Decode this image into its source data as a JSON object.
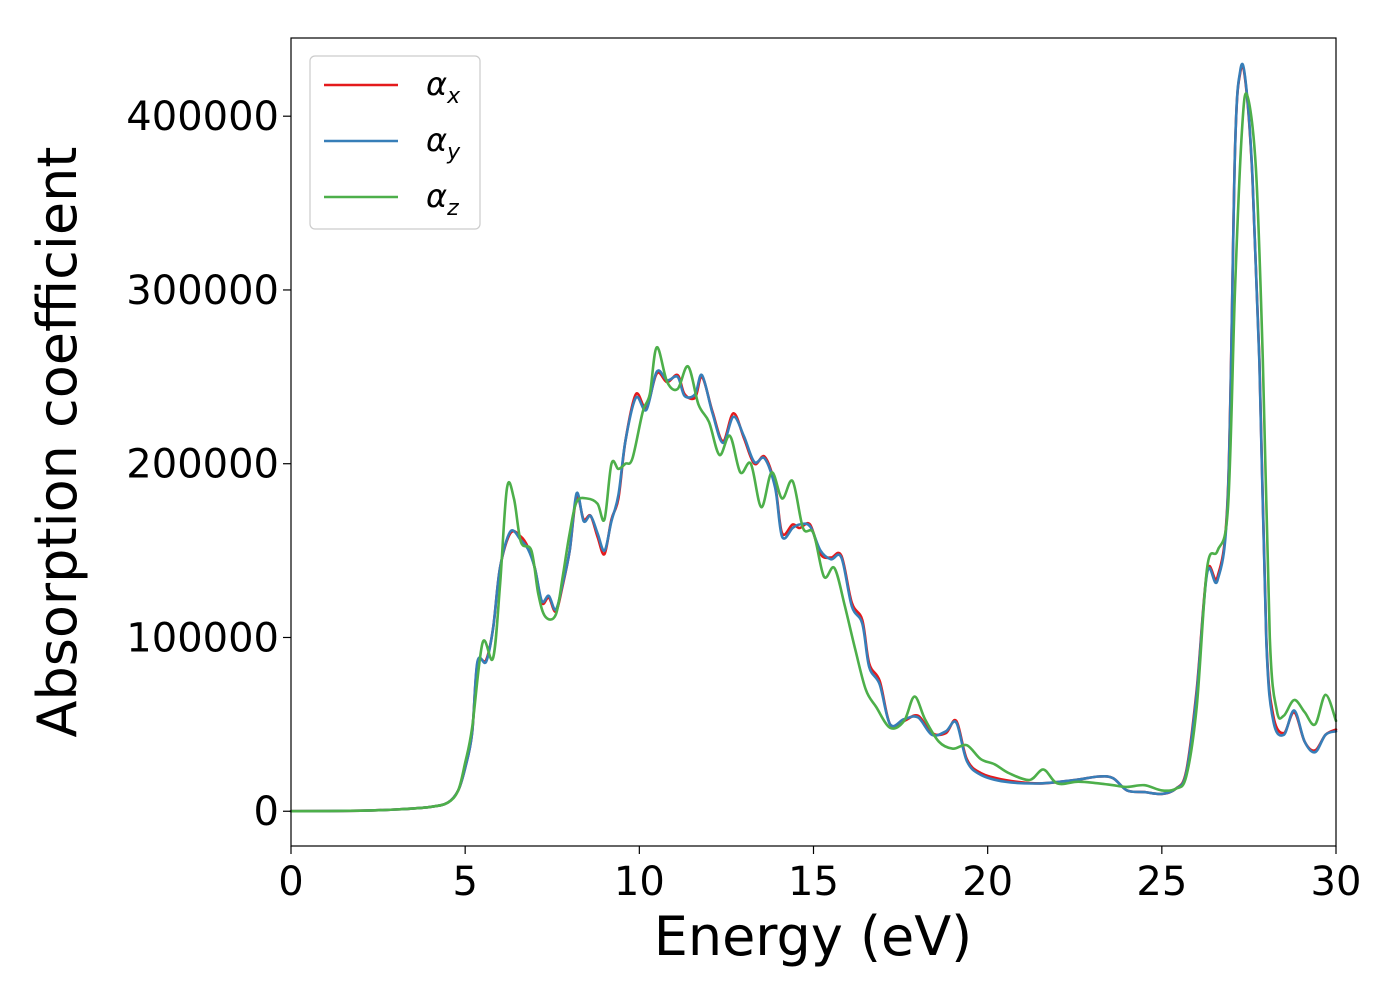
{
  "chart_data": {
    "type": "line",
    "title": "",
    "xlabel": "Energy (eV)",
    "ylabel": "Absorption coefficient",
    "xlim": [
      0,
      30
    ],
    "ylim": [
      -20000,
      445000
    ],
    "xticks": [
      0,
      5,
      10,
      15,
      20,
      25,
      30
    ],
    "yticks": [
      0,
      100000,
      200000,
      300000,
      400000
    ],
    "xtick_labels": [
      "0",
      "5",
      "10",
      "15",
      "20",
      "25",
      "30"
    ],
    "ytick_labels": [
      "0",
      "100000",
      "200000",
      "300000",
      "400000"
    ],
    "grid": false,
    "legend_position": "top-left",
    "series": [
      {
        "name": "αx",
        "symbol": "α",
        "subscript": "x",
        "color": "#e41a1c",
        "points": [
          [
            0,
            0
          ],
          [
            2,
            300
          ],
          [
            3,
            1000
          ],
          [
            4,
            2500
          ],
          [
            4.5,
            5000
          ],
          [
            4.8,
            12000
          ],
          [
            5,
            25000
          ],
          [
            5.2,
            45000
          ],
          [
            5.35,
            85000
          ],
          [
            5.6,
            87000
          ],
          [
            5.8,
            105000
          ],
          [
            6.0,
            140000
          ],
          [
            6.3,
            160000
          ],
          [
            6.6,
            158000
          ],
          [
            6.8,
            152000
          ],
          [
            7.0,
            140000
          ],
          [
            7.2,
            120000
          ],
          [
            7.4,
            123000
          ],
          [
            7.6,
            115000
          ],
          [
            7.8,
            130000
          ],
          [
            8.0,
            150000
          ],
          [
            8.2,
            181000
          ],
          [
            8.4,
            168000
          ],
          [
            8.6,
            170000
          ],
          [
            8.8,
            158000
          ],
          [
            9.0,
            148000
          ],
          [
            9.2,
            168000
          ],
          [
            9.4,
            180000
          ],
          [
            9.6,
            213000
          ],
          [
            9.9,
            240000
          ],
          [
            10.2,
            232000
          ],
          [
            10.5,
            252000
          ],
          [
            10.8,
            247000
          ],
          [
            11.1,
            251000
          ],
          [
            11.3,
            240000
          ],
          [
            11.6,
            238000
          ],
          [
            11.8,
            250000
          ],
          [
            12.1,
            230000
          ],
          [
            12.4,
            213000
          ],
          [
            12.7,
            229000
          ],
          [
            13.0,
            215000
          ],
          [
            13.3,
            200000
          ],
          [
            13.6,
            204000
          ],
          [
            13.9,
            187000
          ],
          [
            14.1,
            160000
          ],
          [
            14.4,
            165000
          ],
          [
            14.6,
            163000
          ],
          [
            14.9,
            165000
          ],
          [
            15.2,
            148000
          ],
          [
            15.5,
            146000
          ],
          [
            15.8,
            147000
          ],
          [
            16.1,
            120000
          ],
          [
            16.4,
            110000
          ],
          [
            16.6,
            85000
          ],
          [
            16.9,
            75000
          ],
          [
            17.2,
            50000
          ],
          [
            17.6,
            52000
          ],
          [
            18.0,
            55000
          ],
          [
            18.4,
            45000
          ],
          [
            18.8,
            45000
          ],
          [
            19.1,
            52000
          ],
          [
            19.4,
            30000
          ],
          [
            19.8,
            22000
          ],
          [
            20.5,
            18000
          ],
          [
            21.5,
            16000
          ],
          [
            22.5,
            18000
          ],
          [
            23.2,
            20000
          ],
          [
            23.6,
            19000
          ],
          [
            24.0,
            12000
          ],
          [
            24.5,
            11000
          ],
          [
            25.0,
            10000
          ],
          [
            25.4,
            13000
          ],
          [
            25.7,
            23000
          ],
          [
            26.0,
            70000
          ],
          [
            26.3,
            138000
          ],
          [
            26.6,
            135000
          ],
          [
            26.9,
            185000
          ],
          [
            27.1,
            380000
          ],
          [
            27.25,
            425000
          ],
          [
            27.4,
            420000
          ],
          [
            27.6,
            365000
          ],
          [
            27.8,
            260000
          ],
          [
            28.0,
            100000
          ],
          [
            28.2,
            55000
          ],
          [
            28.5,
            45000
          ],
          [
            28.8,
            57000
          ],
          [
            29.1,
            40000
          ],
          [
            29.4,
            35000
          ],
          [
            29.7,
            44000
          ],
          [
            30,
            47000
          ]
        ]
      },
      {
        "name": "αy",
        "symbol": "α",
        "subscript": "y",
        "color": "#377eb8",
        "points": [
          [
            0,
            0
          ],
          [
            2,
            300
          ],
          [
            3,
            1000
          ],
          [
            4,
            2500
          ],
          [
            4.5,
            5000
          ],
          [
            4.8,
            12000
          ],
          [
            5,
            25000
          ],
          [
            5.2,
            45000
          ],
          [
            5.35,
            86000
          ],
          [
            5.6,
            86000
          ],
          [
            5.8,
            105000
          ],
          [
            6.0,
            140000
          ],
          [
            6.3,
            161000
          ],
          [
            6.6,
            156000
          ],
          [
            6.8,
            151000
          ],
          [
            7.0,
            140000
          ],
          [
            7.2,
            121000
          ],
          [
            7.4,
            124000
          ],
          [
            7.6,
            116000
          ],
          [
            7.8,
            131000
          ],
          [
            8.0,
            150000
          ],
          [
            8.2,
            183000
          ],
          [
            8.4,
            167000
          ],
          [
            8.6,
            170000
          ],
          [
            8.8,
            160000
          ],
          [
            9.0,
            150000
          ],
          [
            9.2,
            167000
          ],
          [
            9.4,
            182000
          ],
          [
            9.6,
            213000
          ],
          [
            9.9,
            238000
          ],
          [
            10.2,
            231000
          ],
          [
            10.5,
            253000
          ],
          [
            10.8,
            248000
          ],
          [
            11.1,
            250000
          ],
          [
            11.3,
            239000
          ],
          [
            11.6,
            240000
          ],
          [
            11.8,
            251000
          ],
          [
            12.1,
            229000
          ],
          [
            12.4,
            212000
          ],
          [
            12.7,
            227000
          ],
          [
            13.0,
            216000
          ],
          [
            13.3,
            201000
          ],
          [
            13.6,
            203000
          ],
          [
            13.9,
            186000
          ],
          [
            14.1,
            158000
          ],
          [
            14.4,
            163000
          ],
          [
            14.6,
            165000
          ],
          [
            14.9,
            164000
          ],
          [
            15.2,
            150000
          ],
          [
            15.5,
            145000
          ],
          [
            15.8,
            146000
          ],
          [
            16.1,
            118000
          ],
          [
            16.4,
            108000
          ],
          [
            16.6,
            83000
          ],
          [
            16.9,
            73000
          ],
          [
            17.2,
            50000
          ],
          [
            17.6,
            53000
          ],
          [
            18.0,
            54000
          ],
          [
            18.4,
            44000
          ],
          [
            18.8,
            46000
          ],
          [
            19.1,
            51000
          ],
          [
            19.4,
            29000
          ],
          [
            19.8,
            21000
          ],
          [
            20.5,
            17000
          ],
          [
            21.5,
            16000
          ],
          [
            22.5,
            18000
          ],
          [
            23.2,
            20000
          ],
          [
            23.6,
            19000
          ],
          [
            24.0,
            12000
          ],
          [
            24.5,
            11000
          ],
          [
            25.0,
            10000
          ],
          [
            25.4,
            13000
          ],
          [
            25.7,
            22000
          ],
          [
            26.0,
            68000
          ],
          [
            26.3,
            137000
          ],
          [
            26.6,
            133000
          ],
          [
            26.9,
            183000
          ],
          [
            27.1,
            380000
          ],
          [
            27.25,
            426000
          ],
          [
            27.4,
            421000
          ],
          [
            27.6,
            366000
          ],
          [
            27.8,
            258000
          ],
          [
            28.0,
            98000
          ],
          [
            28.2,
            52000
          ],
          [
            28.5,
            44000
          ],
          [
            28.8,
            58000
          ],
          [
            29.1,
            40000
          ],
          [
            29.4,
            34000
          ],
          [
            29.7,
            44000
          ],
          [
            30,
            46000
          ]
        ]
      },
      {
        "name": "αz",
        "symbol": "α",
        "subscript": "z",
        "color": "#4daf4a",
        "points": [
          [
            0,
            0
          ],
          [
            2,
            300
          ],
          [
            3,
            1000
          ],
          [
            4,
            2500
          ],
          [
            4.5,
            5000
          ],
          [
            4.8,
            12000
          ],
          [
            5,
            28000
          ],
          [
            5.2,
            48000
          ],
          [
            5.5,
            97000
          ],
          [
            5.8,
            88000
          ],
          [
            6.0,
            130000
          ],
          [
            6.2,
            186000
          ],
          [
            6.4,
            180000
          ],
          [
            6.6,
            155000
          ],
          [
            6.9,
            150000
          ],
          [
            7.1,
            125000
          ],
          [
            7.3,
            112000
          ],
          [
            7.6,
            113000
          ],
          [
            7.8,
            135000
          ],
          [
            8.0,
            160000
          ],
          [
            8.2,
            178000
          ],
          [
            8.5,
            180000
          ],
          [
            8.8,
            177000
          ],
          [
            9.0,
            168000
          ],
          [
            9.2,
            200000
          ],
          [
            9.4,
            197000
          ],
          [
            9.6,
            200000
          ],
          [
            9.8,
            203000
          ],
          [
            10.1,
            230000
          ],
          [
            10.3,
            240000
          ],
          [
            10.5,
            267000
          ],
          [
            10.8,
            247000
          ],
          [
            11.1,
            243000
          ],
          [
            11.4,
            256000
          ],
          [
            11.7,
            234000
          ],
          [
            12.0,
            224000
          ],
          [
            12.3,
            205000
          ],
          [
            12.6,
            216000
          ],
          [
            12.9,
            195000
          ],
          [
            13.2,
            200000
          ],
          [
            13.5,
            175000
          ],
          [
            13.8,
            195000
          ],
          [
            14.1,
            180000
          ],
          [
            14.4,
            190000
          ],
          [
            14.7,
            163000
          ],
          [
            15.0,
            160000
          ],
          [
            15.3,
            135000
          ],
          [
            15.6,
            140000
          ],
          [
            15.9,
            118000
          ],
          [
            16.2,
            93000
          ],
          [
            16.5,
            70000
          ],
          [
            16.8,
            60000
          ],
          [
            17.2,
            48000
          ],
          [
            17.6,
            52000
          ],
          [
            17.9,
            66000
          ],
          [
            18.2,
            53000
          ],
          [
            18.6,
            40000
          ],
          [
            19.0,
            36000
          ],
          [
            19.4,
            38000
          ],
          [
            19.8,
            30000
          ],
          [
            20.2,
            27000
          ],
          [
            20.6,
            22000
          ],
          [
            21.2,
            18000
          ],
          [
            21.6,
            24000
          ],
          [
            22.0,
            16000
          ],
          [
            22.6,
            17000
          ],
          [
            23.2,
            16000
          ],
          [
            23.6,
            15000
          ],
          [
            24.0,
            14000
          ],
          [
            24.5,
            15000
          ],
          [
            25.0,
            12000
          ],
          [
            25.4,
            13000
          ],
          [
            25.7,
            20000
          ],
          [
            26.0,
            60000
          ],
          [
            26.3,
            140000
          ],
          [
            26.6,
            150000
          ],
          [
            26.9,
            175000
          ],
          [
            27.1,
            300000
          ],
          [
            27.3,
            392000
          ],
          [
            27.45,
            412000
          ],
          [
            27.7,
            370000
          ],
          [
            27.9,
            260000
          ],
          [
            28.1,
            100000
          ],
          [
            28.3,
            58000
          ],
          [
            28.5,
            55000
          ],
          [
            28.8,
            64000
          ],
          [
            29.1,
            57000
          ],
          [
            29.4,
            50000
          ],
          [
            29.7,
            67000
          ],
          [
            30,
            52000
          ]
        ]
      }
    ]
  }
}
